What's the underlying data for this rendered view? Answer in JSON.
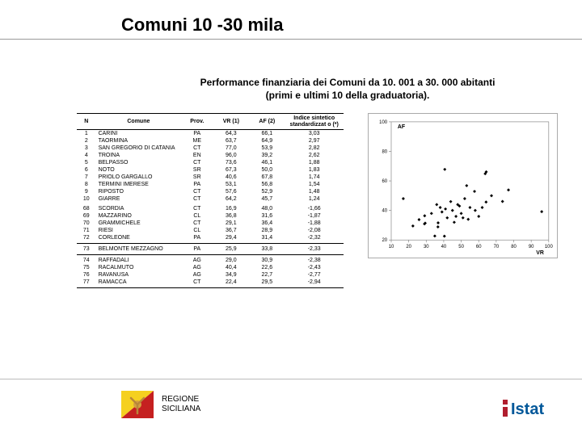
{
  "title": "Comuni 10 -30 mila",
  "subtitle_line1": "Performance finanziaria dei Comuni da 10. 001 a 30. 000 abitanti",
  "subtitle_line2": "(primi e ultimi 10 della graduatoria).",
  "table": {
    "headers": {
      "n": "N",
      "comune": "Comune",
      "prov": "Prov.",
      "vr": "VR (1)",
      "af": "AF (2)",
      "indice": "Indice sintetico standardizzat o (*)"
    },
    "rows": [
      {
        "n": "1",
        "comune": "CARINI",
        "prov": "PA",
        "vr": "64,3",
        "af": "66,1",
        "idx": "3,03"
      },
      {
        "n": "2",
        "comune": "TAORMINA",
        "prov": "ME",
        "vr": "63,7",
        "af": "64,9",
        "idx": "2,97"
      },
      {
        "n": "3",
        "comune": "SAN GREGORIO DI CATANIA",
        "prov": "CT",
        "vr": "77,0",
        "af": "53,9",
        "idx": "2,82"
      },
      {
        "n": "4",
        "comune": "TROINA",
        "prov": "EN",
        "vr": "96,0",
        "af": "39,2",
        "idx": "2,62"
      },
      {
        "n": "5",
        "comune": "BELPASSO",
        "prov": "CT",
        "vr": "73,6",
        "af": "46,1",
        "idx": "1,88"
      },
      {
        "n": "6",
        "comune": "NOTO",
        "prov": "SR",
        "vr": "67,3",
        "af": "50,0",
        "idx": "1,83"
      },
      {
        "n": "7",
        "comune": "PRIOLO GARGALLO",
        "prov": "SR",
        "vr": "40,6",
        "af": "67,8",
        "idx": "1,74"
      },
      {
        "n": "8",
        "comune": "TERMINI IMERESE",
        "prov": "PA",
        "vr": "53,1",
        "af": "56,8",
        "idx": "1,54"
      },
      {
        "n": "9",
        "comune": "RIPOSTO",
        "prov": "CT",
        "vr": "57,6",
        "af": "52,9",
        "idx": "1,48"
      },
      {
        "n": "10",
        "comune": "GIARRE",
        "prov": "CT",
        "vr": "64,2",
        "af": "45,7",
        "idx": "1,24"
      },
      {
        "n": "68",
        "comune": "SCORDIA",
        "prov": "CT",
        "vr": "16,9",
        "af": "48,0",
        "idx": "-1,66"
      },
      {
        "n": "69",
        "comune": "MAZZARINO",
        "prov": "CL",
        "vr": "36,8",
        "af": "31,6",
        "idx": "-1,87"
      },
      {
        "n": "70",
        "comune": "GRAMMICHELE",
        "prov": "CT",
        "vr": "29,1",
        "af": "36,4",
        "idx": "-1,88"
      },
      {
        "n": "71",
        "comune": "RIESI",
        "prov": "CL",
        "vr": "36,7",
        "af": "28,9",
        "idx": "-2,08"
      },
      {
        "n": "72",
        "comune": "CORLEONE",
        "prov": "PA",
        "vr": "29,4",
        "af": "31,4",
        "idx": "-2,32"
      },
      {
        "n": "73",
        "comune": "BELMONTE MEZZAGNO",
        "prov": "PA",
        "vr": "25,9",
        "af": "33,8",
        "idx": "-2,33"
      },
      {
        "n": "74",
        "comune": "RAFFADALI",
        "prov": "AG",
        "vr": "29,0",
        "af": "30,9",
        "idx": "-2,38"
      },
      {
        "n": "75",
        "comune": "RACALMUTO",
        "prov": "AG",
        "vr": "40,4",
        "af": "22,6",
        "idx": "-2,43"
      },
      {
        "n": "76",
        "comune": "RAVANUSA",
        "prov": "AG",
        "vr": "34,9",
        "af": "22,7",
        "idx": "-2,77"
      },
      {
        "n": "77",
        "comune": "RAMACCA",
        "prov": "CT",
        "vr": "22,4",
        "af": "29,5",
        "idx": "-2,94"
      }
    ]
  },
  "chart": {
    "type": "scatter",
    "xlabel": "VR",
    "ylabel": "AF",
    "xlim": [
      10,
      100
    ],
    "xtick_step": 10,
    "ylim": [
      20,
      100
    ],
    "ytick_step": 20,
    "point_color": "#000000",
    "point_size": 3,
    "axis_color": "#888888",
    "background": "#ffffff",
    "label_fontsize": 7,
    "tick_fontsize": 6,
    "points": [
      {
        "x": 64.3,
        "y": 66.1
      },
      {
        "x": 63.7,
        "y": 64.9
      },
      {
        "x": 77.0,
        "y": 53.9
      },
      {
        "x": 96.0,
        "y": 39.2
      },
      {
        "x": 73.6,
        "y": 46.1
      },
      {
        "x": 67.3,
        "y": 50.0
      },
      {
        "x": 40.6,
        "y": 67.8
      },
      {
        "x": 53.1,
        "y": 56.8
      },
      {
        "x": 57.6,
        "y": 52.9
      },
      {
        "x": 64.2,
        "y": 45.7
      },
      {
        "x": 16.9,
        "y": 48.0
      },
      {
        "x": 36.8,
        "y": 31.6
      },
      {
        "x": 29.1,
        "y": 36.4
      },
      {
        "x": 36.7,
        "y": 28.9
      },
      {
        "x": 29.4,
        "y": 31.4
      },
      {
        "x": 25.9,
        "y": 33.8
      },
      {
        "x": 29.0,
        "y": 30.9
      },
      {
        "x": 40.4,
        "y": 22.6
      },
      {
        "x": 34.9,
        "y": 22.7
      },
      {
        "x": 22.4,
        "y": 29.5
      },
      {
        "x": 45,
        "y": 40
      },
      {
        "x": 50,
        "y": 38
      },
      {
        "x": 55,
        "y": 42
      },
      {
        "x": 60,
        "y": 36
      },
      {
        "x": 48,
        "y": 44
      },
      {
        "x": 42,
        "y": 35
      },
      {
        "x": 38,
        "y": 42
      },
      {
        "x": 52,
        "y": 48
      },
      {
        "x": 58,
        "y": 40
      },
      {
        "x": 33,
        "y": 38
      },
      {
        "x": 46,
        "y": 32
      },
      {
        "x": 51,
        "y": 35
      },
      {
        "x": 62,
        "y": 42
      },
      {
        "x": 44,
        "y": 46
      },
      {
        "x": 39,
        "y": 39
      },
      {
        "x": 47,
        "y": 36
      },
      {
        "x": 54,
        "y": 34
      },
      {
        "x": 36,
        "y": 44
      },
      {
        "x": 41,
        "y": 41
      },
      {
        "x": 49,
        "y": 43
      }
    ]
  },
  "footer": {
    "region": "REGIONE",
    "siciliana": "SICILIANA",
    "logo_text": "Istat"
  },
  "colors": {
    "flag_yellow": "#f5d020",
    "flag_red": "#c52020",
    "logo_red": "#b01e2e",
    "logo_blue": "#005799"
  }
}
